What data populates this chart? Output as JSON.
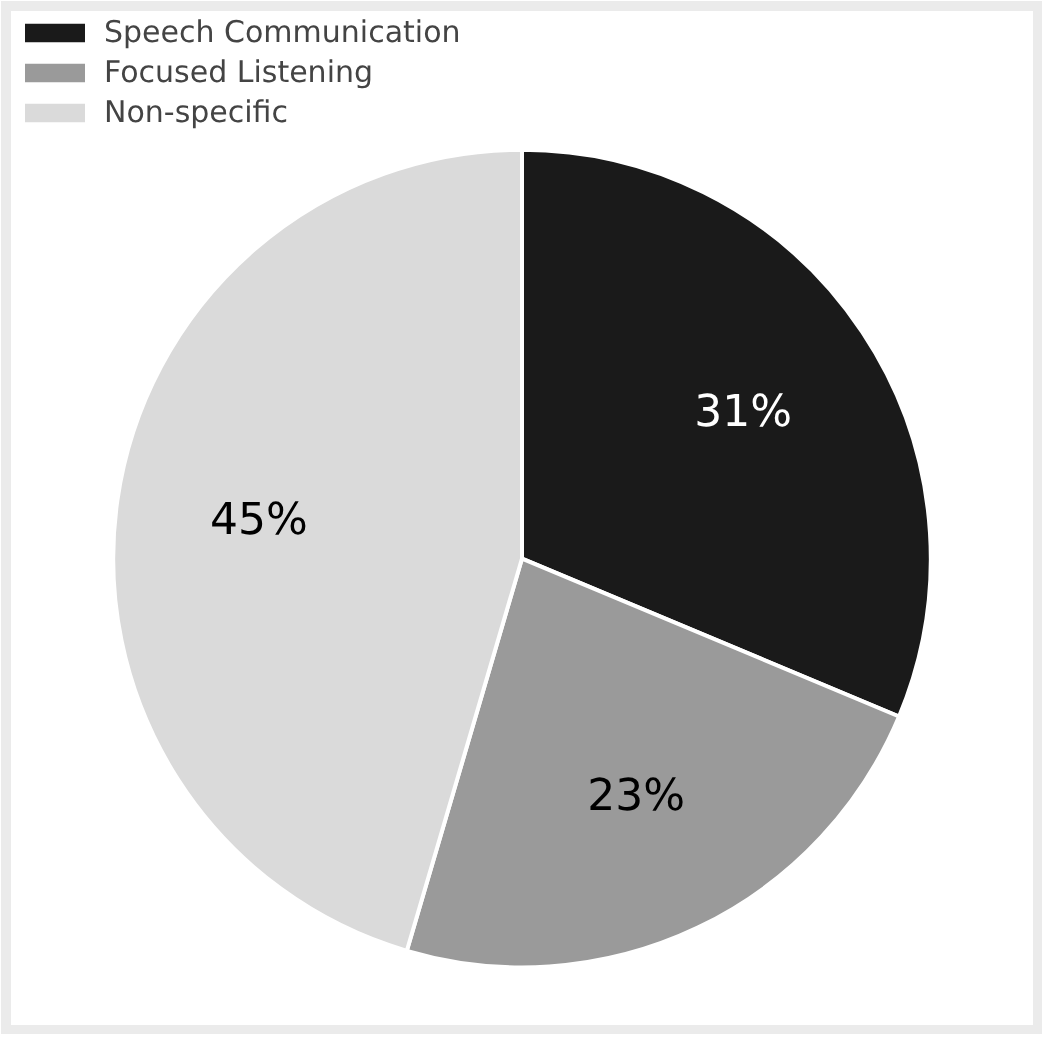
{
  "chart_data": {
    "type": "pie",
    "categories": [
      "Speech Communication",
      "Focused Listening",
      "Non-specific"
    ],
    "values": [
      31,
      23,
      45
    ],
    "colors": [
      "#1a1a1a",
      "#9a9a9a",
      "#dadada"
    ],
    "value_labels": [
      "31%",
      "23%",
      "45%"
    ],
    "legend": "top left"
  }
}
